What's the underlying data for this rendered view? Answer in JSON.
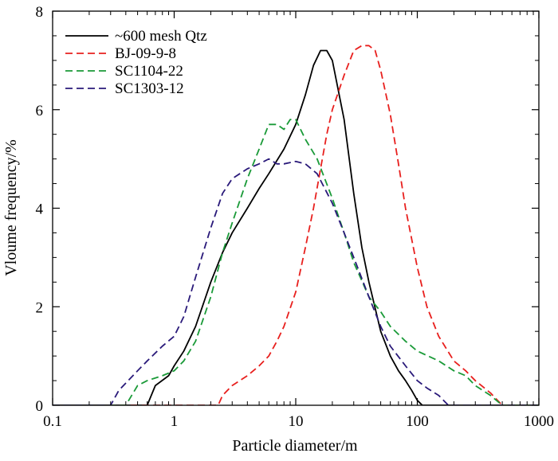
{
  "chart_data": {
    "type": "line",
    "title": "",
    "xlabel": "Particle diameter/m",
    "ylabel": "Vloume frequency/%",
    "xscale": "log",
    "xlim": [
      0.1,
      1000
    ],
    "ylim": [
      0,
      8
    ],
    "x_ticks": [
      0.1,
      1,
      10,
      100,
      1000
    ],
    "x_tick_labels": [
      "0.1",
      "1",
      "10",
      "100",
      "1000"
    ],
    "y_ticks": [
      0,
      2,
      4,
      6,
      8
    ],
    "y_tick_labels": [
      "0",
      "2",
      "4",
      "6",
      "8"
    ],
    "grid": false,
    "legend_position": "top-left",
    "series": [
      {
        "name": "~600 mesh Qtz",
        "color": "#000000",
        "dash": "solid",
        "points": [
          [
            0.1,
            0
          ],
          [
            0.6,
            0
          ],
          [
            0.7,
            0.4
          ],
          [
            0.9,
            0.6
          ],
          [
            1.0,
            0.8
          ],
          [
            1.2,
            1.1
          ],
          [
            1.5,
            1.6
          ],
          [
            2.0,
            2.5
          ],
          [
            2.5,
            3.1
          ],
          [
            3.0,
            3.5
          ],
          [
            4.0,
            4.0
          ],
          [
            5.0,
            4.4
          ],
          [
            6.0,
            4.7
          ],
          [
            8.0,
            5.2
          ],
          [
            10.0,
            5.7
          ],
          [
            12.0,
            6.3
          ],
          [
            14.0,
            6.9
          ],
          [
            16.0,
            7.2
          ],
          [
            18.0,
            7.2
          ],
          [
            20.0,
            7.0
          ],
          [
            25.0,
            5.8
          ],
          [
            30.0,
            4.3
          ],
          [
            35.0,
            3.2
          ],
          [
            40.0,
            2.5
          ],
          [
            50.0,
            1.5
          ],
          [
            60.0,
            1.0
          ],
          [
            70.0,
            0.7
          ],
          [
            80.0,
            0.5
          ],
          [
            90.0,
            0.3
          ],
          [
            100.0,
            0.1
          ],
          [
            110.0,
            0
          ],
          [
            1000,
            0
          ]
        ]
      },
      {
        "name": "BJ-09-9-8",
        "color": "#e8201e",
        "dash": "dashed",
        "points": [
          [
            0.1,
            0
          ],
          [
            2.3,
            0
          ],
          [
            2.5,
            0.2
          ],
          [
            3.0,
            0.4
          ],
          [
            4.0,
            0.6
          ],
          [
            5.0,
            0.8
          ],
          [
            6.0,
            1.0
          ],
          [
            7.0,
            1.3
          ],
          [
            8.0,
            1.6
          ],
          [
            10.0,
            2.3
          ],
          [
            12.0,
            3.2
          ],
          [
            14.0,
            4.0
          ],
          [
            16.0,
            4.8
          ],
          [
            18.0,
            5.5
          ],
          [
            20.0,
            6.0
          ],
          [
            25.0,
            6.7
          ],
          [
            30.0,
            7.2
          ],
          [
            35.0,
            7.3
          ],
          [
            40.0,
            7.3
          ],
          [
            45.0,
            7.2
          ],
          [
            50.0,
            6.8
          ],
          [
            60.0,
            5.9
          ],
          [
            70.0,
            4.9
          ],
          [
            80.0,
            4.0
          ],
          [
            100.0,
            2.8
          ],
          [
            120.0,
            2.0
          ],
          [
            150.0,
            1.4
          ],
          [
            200.0,
            0.9
          ],
          [
            250.0,
            0.7
          ],
          [
            300.0,
            0.5
          ],
          [
            400.0,
            0.25
          ],
          [
            500.0,
            0
          ],
          [
            1000,
            0
          ]
        ]
      },
      {
        "name": "SC1104-22",
        "color": "#1a9a38",
        "dash": "dashed",
        "points": [
          [
            0.1,
            0
          ],
          [
            0.4,
            0
          ],
          [
            0.5,
            0.4
          ],
          [
            0.6,
            0.5
          ],
          [
            0.8,
            0.6
          ],
          [
            1.0,
            0.7
          ],
          [
            1.2,
            0.9
          ],
          [
            1.5,
            1.3
          ],
          [
            2.0,
            2.2
          ],
          [
            2.5,
            3.1
          ],
          [
            3.0,
            3.7
          ],
          [
            4.0,
            4.6
          ],
          [
            5.0,
            5.2
          ],
          [
            6.0,
            5.7
          ],
          [
            7.0,
            5.7
          ],
          [
            8.0,
            5.6
          ],
          [
            9.0,
            5.8
          ],
          [
            10.0,
            5.8
          ],
          [
            12.0,
            5.4
          ],
          [
            15.0,
            5.0
          ],
          [
            20.0,
            4.2
          ],
          [
            25.0,
            3.5
          ],
          [
            30.0,
            2.9
          ],
          [
            40.0,
            2.2
          ],
          [
            50.0,
            1.9
          ],
          [
            60.0,
            1.6
          ],
          [
            80.0,
            1.3
          ],
          [
            100.0,
            1.1
          ],
          [
            150.0,
            0.9
          ],
          [
            200.0,
            0.7
          ],
          [
            250.0,
            0.6
          ],
          [
            300.0,
            0.4
          ],
          [
            400.0,
            0.2
          ],
          [
            500.0,
            0
          ],
          [
            1000,
            0
          ]
        ]
      },
      {
        "name": "SC1303-12",
        "color": "#2a1a7a",
        "dash": "dashed",
        "points": [
          [
            0.1,
            0
          ],
          [
            0.3,
            0
          ],
          [
            0.35,
            0.3
          ],
          [
            0.5,
            0.7
          ],
          [
            0.6,
            0.9
          ],
          [
            0.8,
            1.2
          ],
          [
            1.0,
            1.4
          ],
          [
            1.2,
            1.8
          ],
          [
            1.5,
            2.6
          ],
          [
            2.0,
            3.6
          ],
          [
            2.5,
            4.3
          ],
          [
            3.0,
            4.6
          ],
          [
            4.0,
            4.8
          ],
          [
            5.0,
            4.9
          ],
          [
            6.0,
            5.0
          ],
          [
            7.0,
            4.9
          ],
          [
            8.0,
            4.9
          ],
          [
            10.0,
            4.95
          ],
          [
            12.0,
            4.9
          ],
          [
            15.0,
            4.7
          ],
          [
            20.0,
            4.1
          ],
          [
            25.0,
            3.5
          ],
          [
            30.0,
            3.0
          ],
          [
            40.0,
            2.2
          ],
          [
            50.0,
            1.6
          ],
          [
            60.0,
            1.2
          ],
          [
            80.0,
            0.8
          ],
          [
            100.0,
            0.5
          ],
          [
            120.0,
            0.35
          ],
          [
            150.0,
            0.2
          ],
          [
            180.0,
            0
          ],
          [
            1000,
            0
          ]
        ]
      }
    ]
  }
}
